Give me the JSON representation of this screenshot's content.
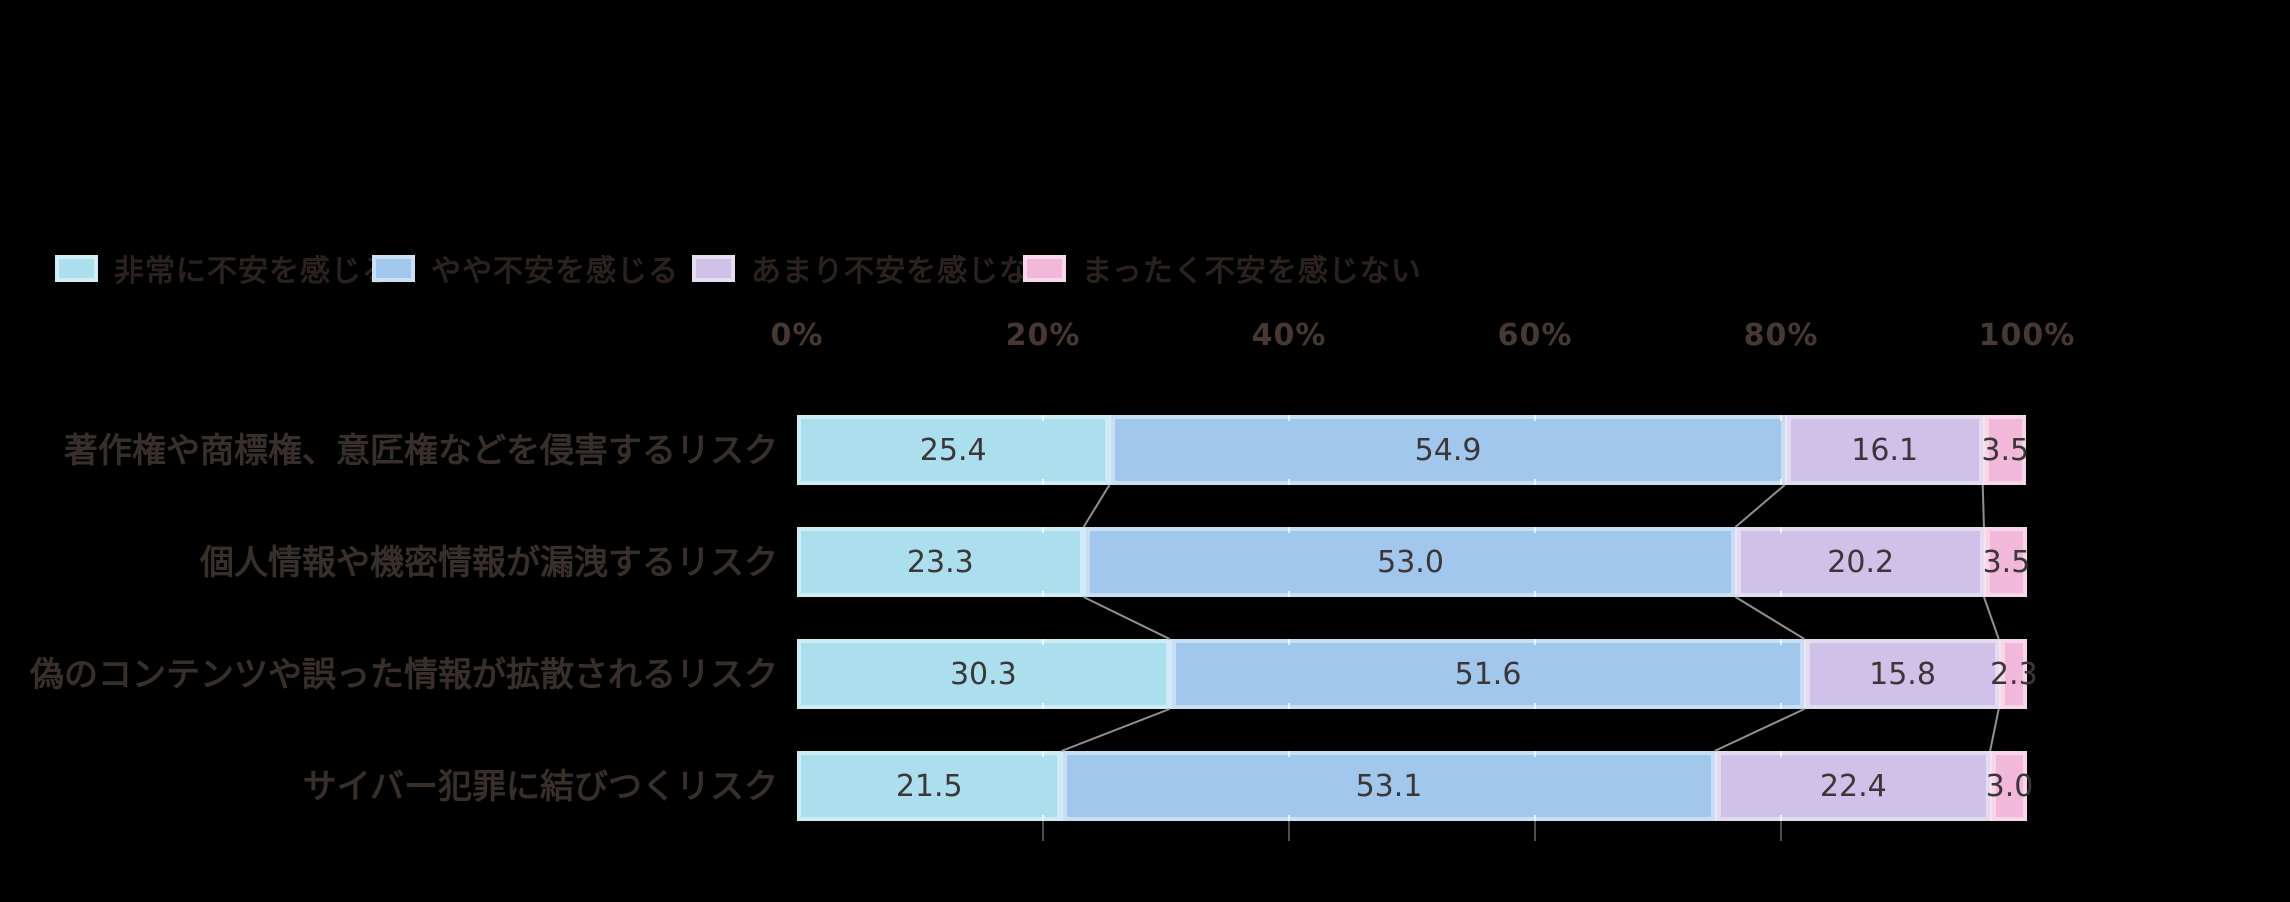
{
  "background": "#000000",
  "legend": {
    "position": "top",
    "items": [
      {
        "label": "非常に不安を感じる",
        "color": "#abdfee"
      },
      {
        "label": "やや不安を感じる",
        "color": "#a1c7ec"
      },
      {
        "label": "あまり不安を感じない",
        "color": "#cfc1e7"
      },
      {
        "label": "まったく不安を感じない",
        "color": "#f2b8d9"
      }
    ]
  },
  "chart_data": {
    "type": "bar",
    "orientation": "horizontal-stacked",
    "title": "",
    "xlabel": "",
    "ylabel": "",
    "x_axis": {
      "tick_labels": [
        "0%",
        "20%",
        "40%",
        "60%",
        "80%",
        "100%"
      ],
      "range": [
        0,
        100
      ],
      "unit": "%"
    },
    "grid": false,
    "legend_position": "top",
    "categories": [
      "著作権や商標権、意匠権などを侵害するリスク",
      "個人情報や機密情報が漏洩するリスク",
      "偽のコンテンツや誤った情報が拡散されるリスク",
      "サイバー犯罪に結びつくリスク"
    ],
    "series": [
      {
        "name": "非常に不安を感じる",
        "color": "#abdfee",
        "values": [
          25.4,
          23.3,
          30.3,
          21.5
        ]
      },
      {
        "name": "やや不安を感じる",
        "color": "#a1c7ec",
        "values": [
          54.9,
          53.0,
          51.6,
          53.1
        ]
      },
      {
        "name": "あまり不安を感じない",
        "color": "#cfc1e7",
        "values": [
          16.1,
          20.2,
          15.8,
          22.4
        ]
      },
      {
        "name": "まったく不安を感じない",
        "color": "#f2b8d9",
        "values": [
          3.5,
          3.5,
          2.3,
          3.0
        ]
      }
    ],
    "value_labels_shown": true,
    "value_label_decimals": 1
  },
  "styles": {
    "axis_label_color": "#473831",
    "category_label_color": "#382e2a",
    "value_label_color": "#3b3738",
    "legend_label_color": "#2b211e",
    "connector_line_color": "#909090",
    "bottom_tick_color": "#4c4c4c"
  }
}
